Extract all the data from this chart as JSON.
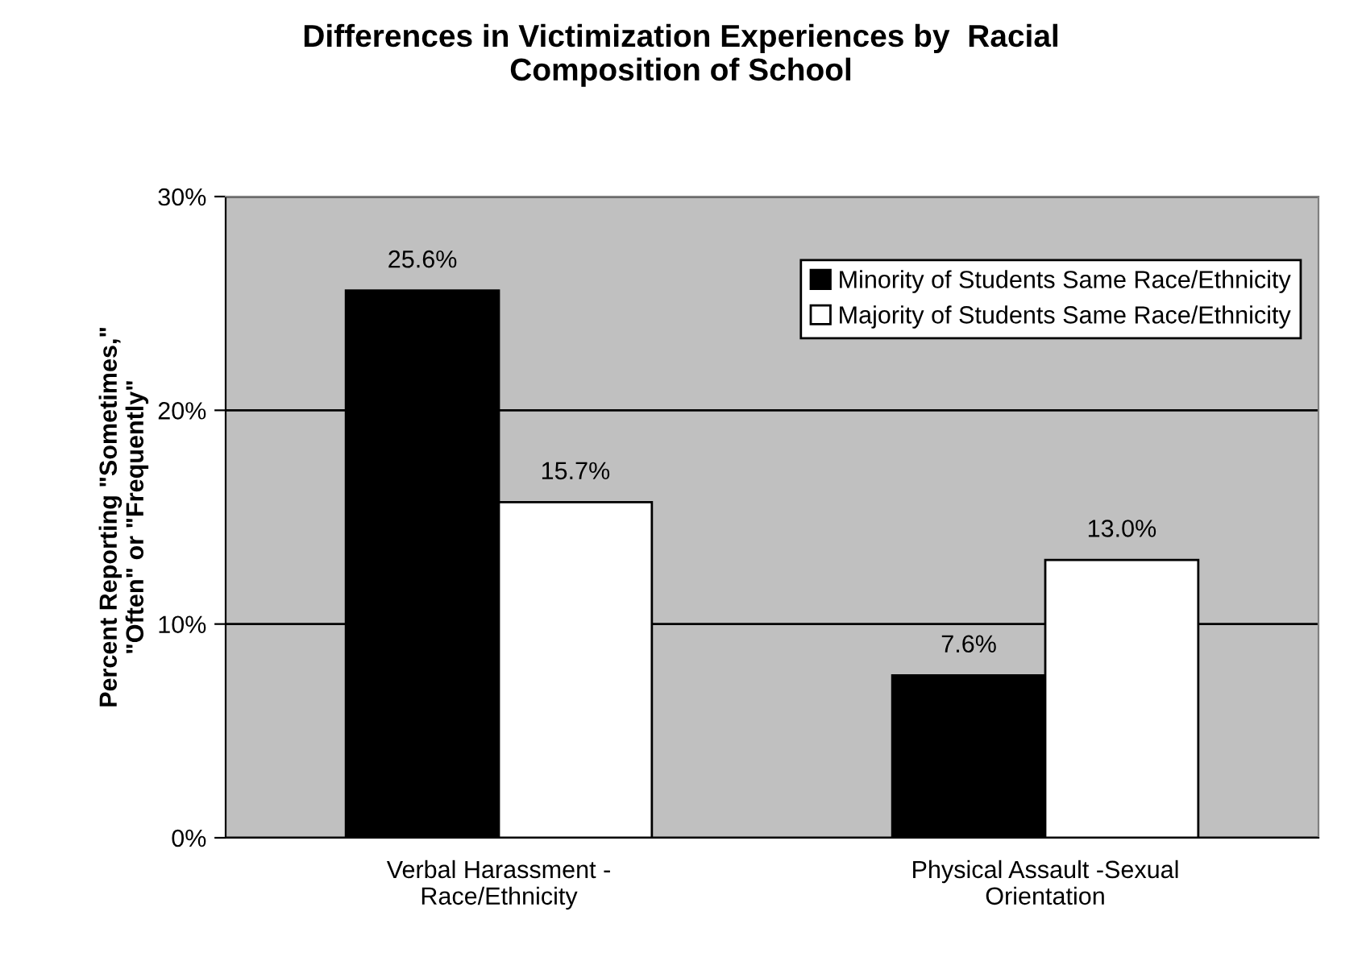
{
  "chart_data": {
    "type": "bar",
    "title": "Differences in Victimization Experiences by  Racial\nComposition of School",
    "ylabel": "Percent Reporting \"Sometimes,\"\n\"Often\" or \"Frequently\"",
    "categories": [
      "Verbal Harassment -\nRace/Ethnicity",
      "Physical Assault -Sexual\nOrientation"
    ],
    "series": [
      {
        "name": "Minority of Students Same Race/Ethnicity",
        "color": "#000000",
        "values": [
          25.6,
          7.6
        ],
        "value_labels": [
          "25.6%",
          "7.6%"
        ]
      },
      {
        "name": "Majority of Students Same Race/Ethnicity",
        "color": "#ffffff",
        "values": [
          15.7,
          13.0
        ],
        "value_labels": [
          "15.7%",
          "13.0%"
        ]
      }
    ],
    "ylim": [
      0,
      30
    ],
    "yticks": [
      {
        "value": 0,
        "label": "0%"
      },
      {
        "value": 10,
        "label": "10%"
      },
      {
        "value": 20,
        "label": "20%"
      },
      {
        "value": 30,
        "label": "30%"
      }
    ],
    "grid": "y",
    "legend": "top right"
  }
}
